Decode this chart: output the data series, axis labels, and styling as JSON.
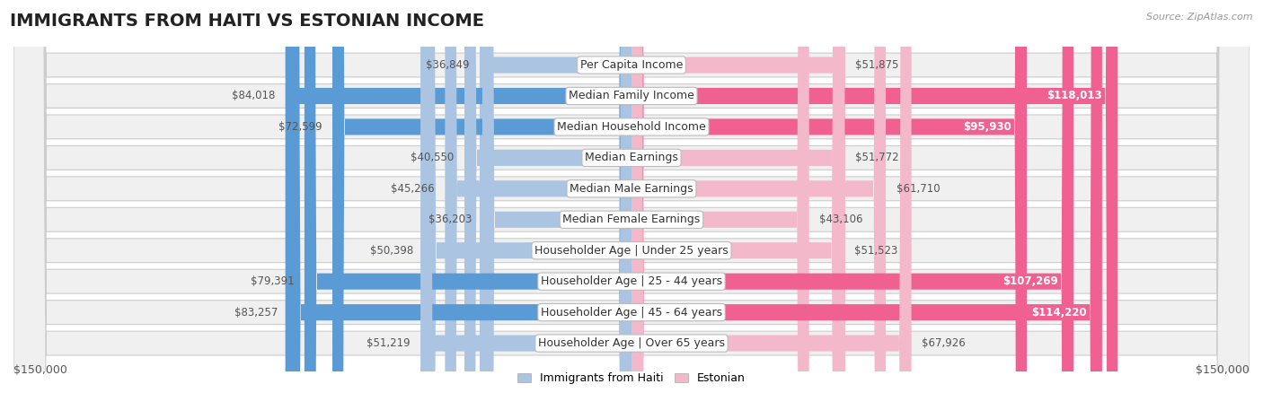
{
  "title": "IMMIGRANTS FROM HAITI VS ESTONIAN INCOME",
  "source": "Source: ZipAtlas.com",
  "categories": [
    "Per Capita Income",
    "Median Family Income",
    "Median Household Income",
    "Median Earnings",
    "Median Male Earnings",
    "Median Female Earnings",
    "Householder Age | Under 25 years",
    "Householder Age | 25 - 44 years",
    "Householder Age | 45 - 64 years",
    "Householder Age | Over 65 years"
  ],
  "haiti_values": [
    36849,
    84018,
    72599,
    40550,
    45266,
    36203,
    50398,
    79391,
    83257,
    51219
  ],
  "estonian_values": [
    51875,
    118013,
    95930,
    51772,
    61710,
    43106,
    51523,
    107269,
    114220,
    67926
  ],
  "haiti_labels": [
    "$36,849",
    "$84,018",
    "$72,599",
    "$40,550",
    "$45,266",
    "$36,203",
    "$50,398",
    "$79,391",
    "$83,257",
    "$51,219"
  ],
  "estonian_labels": [
    "$51,875",
    "$118,013",
    "$95,930",
    "$51,772",
    "$61,710",
    "$43,106",
    "$51,523",
    "$107,269",
    "$114,220",
    "$67,926"
  ],
  "haiti_color_light": "#aac4e2",
  "haiti_color_dark": "#5b9bd5",
  "estonian_color_light": "#f4b8cb",
  "estonian_color_dark": "#f06090",
  "haiti_dark_threshold": 65000,
  "estonian_dark_threshold": 85000,
  "estonian_inside_threshold": 85000,
  "haiti_inside_threshold": 999999,
  "max_value": 150000,
  "xlabel_left": "$150,000",
  "xlabel_right": "$150,000",
  "legend_haiti": "Immigrants from Haiti",
  "legend_estonian": "Estonian",
  "title_fontsize": 14,
  "label_fontsize": 8.5,
  "category_fontsize": 9
}
